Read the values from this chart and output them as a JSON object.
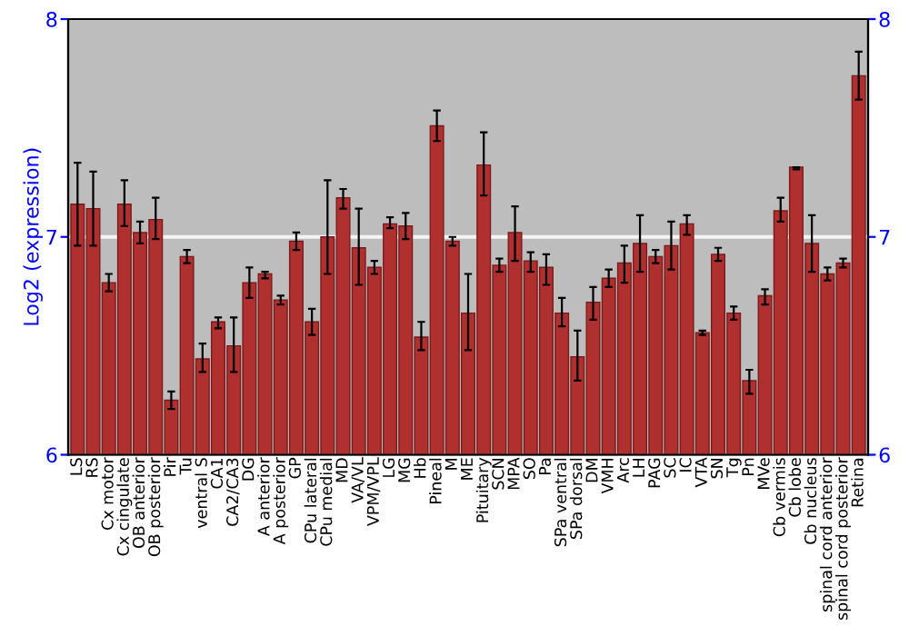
{
  "chart_data": {
    "type": "bar",
    "ylabel": "Log2 (expression)",
    "categories": [
      "LS",
      "RS",
      "Cx motor",
      "Cx cingulate",
      "OB anterior",
      "OB posterior",
      "Pir",
      "Tu",
      "ventral S",
      "CA1",
      "CA2/CA3",
      "DG",
      "A anterior",
      "A posterior",
      "GP",
      "CPu lateral",
      "CPu medial",
      "MD",
      "VA/VL",
      "VPM/VPL",
      "LG",
      "MG",
      "Hb",
      "Pineal",
      "M",
      "ME",
      "Pituitary",
      "SCN",
      "MPA",
      "SO",
      "Pa",
      "SPa ventral",
      "SPa dorsal",
      "DM",
      "VMH",
      "Arc",
      "LH",
      "PAG",
      "SC",
      "IC",
      "VTA",
      "SN",
      "Tg",
      "Pn",
      "MVe",
      "Cb vermis",
      "Cb lobe",
      "Cb nucleus",
      "spinal cord anterior",
      "spinal cord posterior",
      "Retina"
    ],
    "values": [
      7.15,
      7.13,
      6.79,
      7.15,
      7.02,
      7.08,
      6.25,
      6.91,
      6.44,
      6.61,
      6.5,
      6.79,
      6.83,
      6.71,
      6.98,
      6.61,
      7.0,
      7.18,
      6.95,
      6.86,
      7.06,
      7.05,
      6.54,
      7.51,
      6.98,
      6.65,
      7.33,
      6.87,
      7.02,
      6.89,
      6.86,
      6.65,
      6.45,
      6.7,
      6.81,
      6.88,
      6.97,
      6.91,
      6.96,
      7.06,
      6.56,
      6.92,
      6.65,
      6.34,
      6.73,
      7.12,
      7.32,
      6.97,
      6.83,
      6.88,
      7.74
    ],
    "errors": [
      [
        6.96,
        7.34
      ],
      [
        6.96,
        7.3
      ],
      [
        6.75,
        6.83
      ],
      [
        7.05,
        7.26
      ],
      [
        6.97,
        7.07
      ],
      [
        6.99,
        7.18
      ],
      [
        6.21,
        6.29
      ],
      [
        6.88,
        6.94
      ],
      [
        6.38,
        6.51
      ],
      [
        6.58,
        6.63
      ],
      [
        6.38,
        6.63
      ],
      [
        6.72,
        6.86
      ],
      [
        6.81,
        6.84
      ],
      [
        6.69,
        6.73
      ],
      [
        6.94,
        7.02
      ],
      [
        6.55,
        6.67
      ],
      [
        6.83,
        7.26
      ],
      [
        7.13,
        7.22
      ],
      [
        6.78,
        7.13
      ],
      [
        6.83,
        6.89
      ],
      [
        7.04,
        7.09
      ],
      [
        6.99,
        7.11
      ],
      [
        6.48,
        6.61
      ],
      [
        7.44,
        7.58
      ],
      [
        6.96,
        7.0
      ],
      [
        6.48,
        6.83
      ],
      [
        7.19,
        7.48
      ],
      [
        6.84,
        6.9
      ],
      [
        6.89,
        7.14
      ],
      [
        6.84,
        6.93
      ],
      [
        6.78,
        6.92
      ],
      [
        6.59,
        6.72
      ],
      [
        6.34,
        6.57
      ],
      [
        6.62,
        6.77
      ],
      [
        6.77,
        6.85
      ],
      [
        6.79,
        6.96
      ],
      [
        6.84,
        7.1
      ],
      [
        6.88,
        6.94
      ],
      [
        6.85,
        7.07
      ],
      [
        7.01,
        7.1
      ],
      [
        6.55,
        6.57
      ],
      [
        6.89,
        6.95
      ],
      [
        6.62,
        6.68
      ],
      [
        6.28,
        6.39
      ],
      [
        6.69,
        6.76
      ],
      [
        7.07,
        7.18
      ],
      [
        7.31,
        7.32
      ],
      [
        6.84,
        7.1
      ],
      [
        6.8,
        6.86
      ],
      [
        6.86,
        6.9
      ],
      [
        7.63,
        7.85
      ]
    ],
    "color": "#b03030",
    "ylim": [
      6,
      8
    ],
    "yticks": [
      6,
      7,
      8
    ],
    "y2lim": [
      6,
      8
    ],
    "y2ticks": [
      6,
      7,
      8
    ],
    "ref_lines": [
      {
        "axis": "y",
        "value": 7,
        "color": "#f4f4f4"
      }
    ]
  }
}
